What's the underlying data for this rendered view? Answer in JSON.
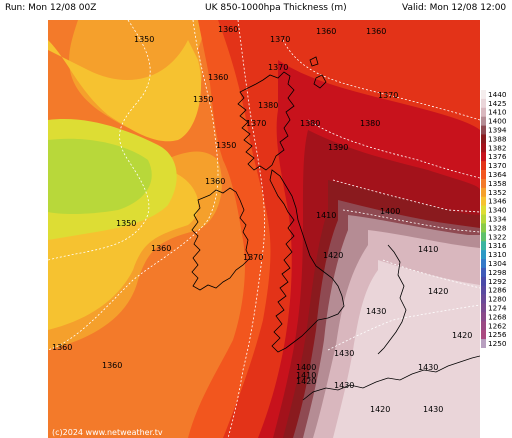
{
  "header": {
    "run": "Run: Mon 12/08 00Z",
    "title": "UK 850-1000hpa Thickness (m)",
    "valid": "Valid: Mon 12/08 12:00"
  },
  "copyright": "(c)2024 www.netweather.tv",
  "legend": {
    "levels": [
      "1440",
      "1425",
      "1410",
      "1400",
      "1394",
      "1388",
      "1382",
      "1376",
      "1370",
      "1364",
      "1358",
      "1352",
      "1346",
      "1340",
      "1334",
      "1328",
      "1322",
      "1316",
      "1310",
      "1304",
      "1298",
      "1292",
      "1286",
      "1280",
      "1274",
      "1268",
      "1262",
      "1256",
      "1250"
    ],
    "colors": [
      "#f5eded",
      "#ead5d9",
      "#d9b7be",
      "#b58c94",
      "#8f4a52",
      "#8a1a1e",
      "#a3121b",
      "#c8121c",
      "#e33318",
      "#f2561e",
      "#f37a2a",
      "#f5a02c",
      "#f6c230",
      "#dddd34",
      "#b8d83a",
      "#8acb48",
      "#5fc06a",
      "#3bb5a0",
      "#2c98c5",
      "#3479c8",
      "#3f5ab8",
      "#4a4aa8",
      "#5a4aa0",
      "#6a4a98",
      "#7a4a90",
      "#8a4a8a",
      "#9a4a84",
      "#aa4a80",
      "#b8a0c0"
    ]
  },
  "contour_labels": [
    "1350",
    "1360",
    "1370",
    "1360",
    "1370",
    "1350",
    "1380",
    "1370",
    "1380",
    "1370",
    "1390",
    "1380",
    "1350",
    "1360",
    "1350",
    "1360",
    "1370",
    "1400",
    "1410",
    "1410",
    "1420",
    "1420",
    "1430",
    "1420",
    "1430",
    "1420",
    "1430",
    "1400",
    "1410",
    "1430",
    "1420",
    "1430",
    "1360",
    "1360",
    "1360",
    "1360"
  ]
}
